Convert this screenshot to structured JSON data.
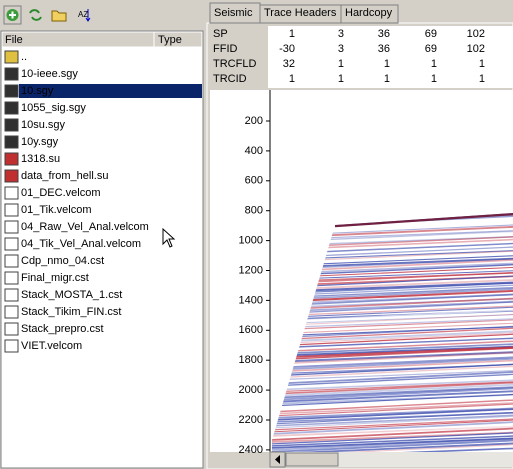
{
  "toolbar": {
    "sort_icon_label": "AZ"
  },
  "file_list": {
    "columns": [
      "File",
      "Type"
    ],
    "files": [
      "..",
      "10-ieee.sgy",
      "10.sgy",
      "1055_sig.sgy",
      "10su.sgy",
      "10y.sgy",
      "1318.su",
      "data_from_hell.su",
      "01_DEC.velcom",
      "01_Tik.velcom",
      "04_Raw_Vel_Anal.velcom",
      "04_Tik_Vel_Anal.velcom",
      "Cdp_nmo_04.cst",
      "Final_migr.cst",
      "Stack_MOSTA_1.cst",
      "Stack_Tikim_FIN.cst",
      "Stack_prepro.cst",
      "VIET.velcom"
    ],
    "selected": "10.sgy"
  },
  "tabs": [
    "Seismic",
    "Trace Headers",
    "Hardcopy"
  ],
  "headers": {
    "rows": [
      {
        "name": "SP",
        "values": [
          "1",
          "3",
          "36",
          "69",
          "102"
        ]
      },
      {
        "name": "FFID",
        "values": [
          "-30",
          "3",
          "36",
          "69",
          "102"
        ]
      },
      {
        "name": "TRCFLD",
        "values": [
          "32",
          "1",
          "1",
          "1",
          "1"
        ]
      },
      {
        "name": "TRCID",
        "values": [
          "1",
          "1",
          "1",
          "1",
          "1"
        ]
      }
    ]
  },
  "seismic": {
    "depth_labels": [
      "200",
      "400",
      "600",
      "800",
      "1000",
      "1200",
      "1400",
      "1600",
      "1800",
      "2000",
      "2200",
      "2400"
    ]
  }
}
